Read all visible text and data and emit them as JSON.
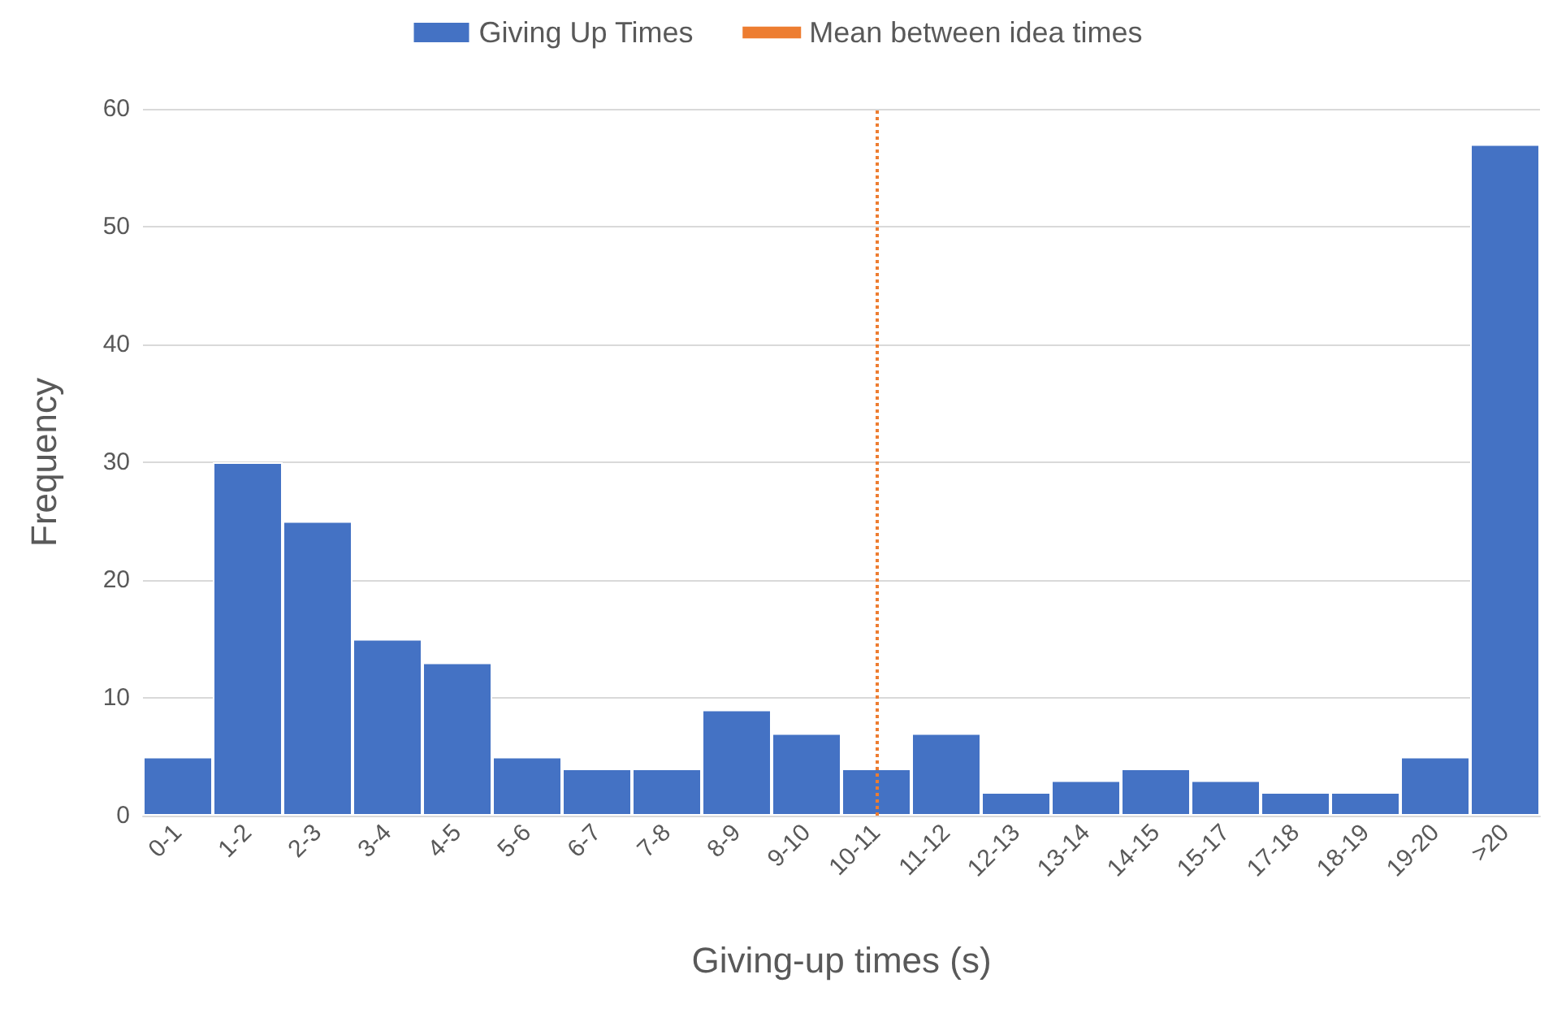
{
  "chart_data": {
    "type": "bar",
    "xlabel": "Giving-up times (s)",
    "ylabel": "Frequency",
    "categories": [
      "0-1",
      "1-2",
      "2-3",
      "3-4",
      "4-5",
      "5-6",
      "6-7",
      "7-8",
      "8-9",
      "9-10",
      "10-11",
      "11-12",
      "12-13",
      "13-14",
      "14-15",
      "15-17",
      "17-18",
      "18-19",
      "19-20",
      ">20"
    ],
    "series": [
      {
        "name": "Giving Up Times",
        "color": "#4472c4",
        "values": [
          5,
          30,
          25,
          15,
          13,
          5,
          4,
          4,
          9,
          7,
          4,
          7,
          2,
          3,
          4,
          3,
          2,
          2,
          5,
          57
        ]
      }
    ],
    "ref_lines": [
      {
        "axis": "x",
        "value": "10-11",
        "label": "Mean between idea times",
        "color": "#ed7d31",
        "line_style": "dotted"
      }
    ],
    "ylim": [
      0,
      60
    ],
    "yticks": [
      0,
      10,
      20,
      30,
      40,
      50,
      60
    ],
    "grid": "y",
    "legend": "top"
  }
}
